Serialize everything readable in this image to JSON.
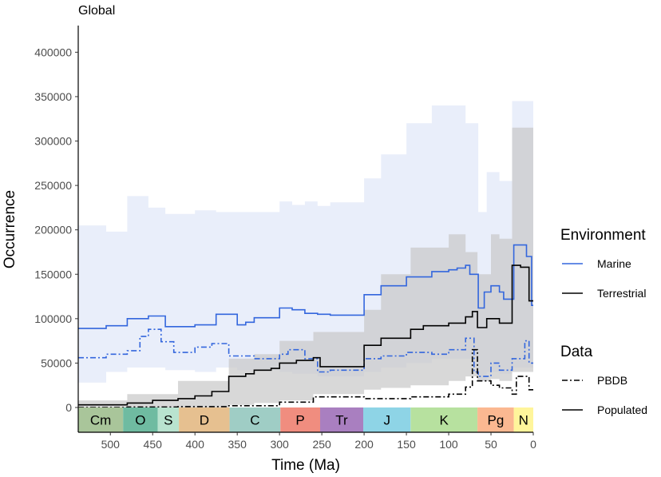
{
  "chart_data": {
    "type": "line",
    "title": "Global",
    "xlabel": "Time (Ma)",
    "ylabel": "Occurrence",
    "xlim": [
      538,
      0
    ],
    "ylim": [
      0,
      430000
    ],
    "x_ticks": [
      500,
      450,
      400,
      350,
      300,
      250,
      200,
      150,
      100,
      50,
      0
    ],
    "y_ticks": [
      0,
      50000,
      100000,
      150000,
      200000,
      250000,
      300000,
      350000,
      400000
    ],
    "y_tick_labels": [
      "0",
      "50000",
      "100000",
      "150000",
      "200000",
      "250000",
      "300000",
      "350000",
      "400000"
    ],
    "periods": [
      {
        "label": "Cm",
        "start": 538,
        "end": 485,
        "color": "#a9c59a"
      },
      {
        "label": "O",
        "start": 485,
        "end": 444,
        "color": "#6fbba1"
      },
      {
        "label": "S",
        "start": 444,
        "end": 419,
        "color": "#b9e3cf"
      },
      {
        "label": "D",
        "start": 419,
        "end": 359,
        "color": "#e6c090"
      },
      {
        "label": "C",
        "start": 359,
        "end": 299,
        "color": "#9fcdc5"
      },
      {
        "label": "P",
        "start": 299,
        "end": 252,
        "color": "#f08d7f"
      },
      {
        "label": "Tr",
        "start": 252,
        "end": 201,
        "color": "#a97fc0"
      },
      {
        "label": "J",
        "start": 201,
        "end": 145,
        "color": "#8ed4e6"
      },
      {
        "label": "K",
        "start": 145,
        "end": 66,
        "color": "#b7e19f"
      },
      {
        "label": "Pg",
        "start": 66,
        "end": 23,
        "color": "#fbb891"
      },
      {
        "label": "N",
        "start": 23,
        "end": 0,
        "color": "#fff59b"
      }
    ],
    "legend": [
      {
        "title": "Environment",
        "items": [
          {
            "label": "Marine",
            "color": "#3366dd",
            "dash": "solid"
          },
          {
            "label": "Terrestrial",
            "color": "#000000",
            "dash": "solid"
          }
        ]
      },
      {
        "title": "Data",
        "items": [
          {
            "label": "PBDB",
            "color": "#000000",
            "dash": "dotdash"
          },
          {
            "label": "Populated",
            "color": "#000000",
            "dash": "solid"
          }
        ]
      }
    ],
    "series": [
      {
        "name": "Marine",
        "kind": "Populated",
        "color": "#3366dd",
        "dash": "solid",
        "x": [
          538,
          505,
          505,
          480,
          480,
          455,
          455,
          435,
          435,
          400,
          400,
          375,
          375,
          350,
          350,
          340,
          340,
          330,
          330,
          300,
          300,
          285,
          285,
          270,
          270,
          255,
          255,
          240,
          240,
          200,
          200,
          180,
          180,
          150,
          150,
          120,
          120,
          100,
          100,
          90,
          90,
          80,
          80,
          75,
          75,
          65,
          65,
          58,
          58,
          50,
          50,
          40,
          40,
          35,
          35,
          23,
          23,
          8,
          8,
          2,
          2,
          0
        ],
        "y": [
          89000,
          89000,
          92000,
          92000,
          100000,
          100000,
          103000,
          103000,
          91000,
          91000,
          93000,
          93000,
          105000,
          105000,
          93000,
          93000,
          96000,
          96000,
          101000,
          101000,
          112000,
          112000,
          110000,
          110000,
          106000,
          106000,
          105000,
          105000,
          104000,
          104000,
          127000,
          127000,
          137000,
          137000,
          147000,
          147000,
          153000,
          153000,
          155000,
          155000,
          157000,
          157000,
          160000,
          160000,
          150000,
          150000,
          112000,
          112000,
          130000,
          130000,
          137000,
          137000,
          130000,
          130000,
          122000,
          122000,
          183000,
          183000,
          170000,
          170000,
          115000,
          115000
        ]
      },
      {
        "name": "Marine",
        "kind": "PBDB",
        "color": "#3366dd",
        "dash": "dotdash",
        "x": [
          538,
          505,
          505,
          480,
          480,
          465,
          465,
          455,
          455,
          440,
          440,
          425,
          425,
          400,
          400,
          380,
          380,
          360,
          360,
          330,
          330,
          300,
          300,
          290,
          290,
          270,
          270,
          255,
          255,
          240,
          240,
          200,
          200,
          180,
          180,
          150,
          150,
          120,
          120,
          100,
          100,
          80,
          80,
          70,
          70,
          65,
          65,
          50,
          50,
          40,
          40,
          25,
          25,
          10,
          10,
          5,
          5,
          0
        ],
        "y": [
          56000,
          56000,
          60000,
          60000,
          64000,
          64000,
          80000,
          80000,
          88000,
          88000,
          74000,
          74000,
          62000,
          62000,
          68000,
          68000,
          72000,
          72000,
          58000,
          58000,
          55000,
          55000,
          60000,
          60000,
          65000,
          65000,
          55000,
          55000,
          40000,
          40000,
          42000,
          42000,
          55000,
          55000,
          58000,
          58000,
          62000,
          62000,
          60000,
          60000,
          65000,
          65000,
          78000,
          78000,
          40000,
          40000,
          35000,
          35000,
          50000,
          50000,
          42000,
          42000,
          55000,
          55000,
          75000,
          75000,
          50000,
          50000
        ]
      },
      {
        "name": "Terrestrial",
        "kind": "Populated",
        "color": "#000000",
        "dash": "solid",
        "x": [
          538,
          480,
          480,
          450,
          450,
          420,
          420,
          400,
          400,
          380,
          380,
          360,
          360,
          340,
          340,
          330,
          330,
          310,
          310,
          300,
          300,
          280,
          280,
          260,
          260,
          252,
          252,
          200,
          200,
          180,
          180,
          145,
          145,
          130,
          130,
          100,
          100,
          80,
          80,
          72,
          72,
          66,
          66,
          55,
          55,
          40,
          40,
          25,
          25,
          15,
          15,
          5,
          5,
          0
        ],
        "y": [
          3000,
          3000,
          5000,
          5000,
          8000,
          8000,
          10000,
          10000,
          13000,
          13000,
          18000,
          18000,
          35000,
          35000,
          38000,
          38000,
          42000,
          42000,
          44000,
          44000,
          50000,
          50000,
          53000,
          53000,
          56000,
          56000,
          46000,
          46000,
          70000,
          70000,
          78000,
          78000,
          88000,
          88000,
          92000,
          92000,
          95000,
          95000,
          102000,
          102000,
          108000,
          108000,
          90000,
          90000,
          100000,
          100000,
          95000,
          95000,
          160000,
          160000,
          158000,
          158000,
          120000,
          120000
        ]
      },
      {
        "name": "Terrestrial",
        "kind": "PBDB",
        "color": "#000000",
        "dash": "dotdash",
        "x": [
          538,
          480,
          480,
          420,
          420,
          360,
          360,
          300,
          300,
          260,
          260,
          200,
          200,
          145,
          145,
          100,
          100,
          80,
          80,
          72,
          72,
          66,
          66,
          50,
          50,
          40,
          40,
          25,
          25,
          20,
          20,
          5,
          5,
          0
        ],
        "y": [
          0,
          0,
          500,
          500,
          1000,
          1000,
          2000,
          2000,
          6000,
          6000,
          12000,
          12000,
          10000,
          10000,
          12000,
          12000,
          15000,
          15000,
          23000,
          23000,
          65000,
          65000,
          30000,
          30000,
          25000,
          25000,
          22000,
          22000,
          15000,
          15000,
          35000,
          35000,
          20000,
          20000
        ]
      }
    ],
    "bands": [
      {
        "name": "Marine",
        "color": "#dbe3f6",
        "x": [
          538,
          505,
          505,
          480,
          480,
          455,
          455,
          435,
          435,
          400,
          400,
          375,
          375,
          350,
          350,
          300,
          300,
          285,
          285,
          270,
          270,
          255,
          255,
          240,
          240,
          200,
          200,
          180,
          180,
          150,
          150,
          120,
          120,
          100,
          100,
          80,
          80,
          65,
          65,
          55,
          55,
          40,
          40,
          25,
          25,
          0
        ],
        "lower": [
          28000,
          28000,
          40000,
          40000,
          45000,
          45000,
          45000,
          45000,
          42000,
          42000,
          40000,
          40000,
          45000,
          45000,
          42000,
          42000,
          40000,
          40000,
          38000,
          38000,
          38000,
          38000,
          35000,
          35000,
          35000,
          35000,
          40000,
          40000,
          45000,
          45000,
          50000,
          50000,
          55000,
          55000,
          55000,
          55000,
          55000,
          55000,
          30000,
          30000,
          40000,
          40000,
          38000,
          38000,
          45000,
          45000
        ],
        "upper": [
          205000,
          205000,
          198000,
          198000,
          238000,
          238000,
          225000,
          225000,
          218000,
          218000,
          222000,
          222000,
          220000,
          220000,
          220000,
          220000,
          232000,
          232000,
          228000,
          228000,
          232000,
          232000,
          227000,
          227000,
          231000,
          231000,
          258000,
          258000,
          285000,
          285000,
          320000,
          320000,
          340000,
          340000,
          340000,
          340000,
          320000,
          320000,
          220000,
          220000,
          265000,
          265000,
          255000,
          255000,
          345000,
          345000
        ]
      },
      {
        "name": "Terrestrial",
        "color": "#c8c8c8",
        "x": [
          538,
          480,
          480,
          420,
          420,
          360,
          360,
          330,
          330,
          300,
          300,
          260,
          260,
          200,
          200,
          180,
          180,
          145,
          145,
          100,
          100,
          80,
          80,
          66,
          66,
          50,
          50,
          40,
          40,
          25,
          25,
          0
        ],
        "lower": [
          0,
          0,
          0,
          0,
          0,
          0,
          3000,
          3000,
          5000,
          5000,
          8000,
          8000,
          15000,
          15000,
          20000,
          20000,
          22000,
          22000,
          25000,
          25000,
          30000,
          30000,
          35000,
          35000,
          30000,
          30000,
          32000,
          32000,
          30000,
          30000,
          40000,
          40000
        ],
        "upper": [
          8000,
          8000,
          15000,
          15000,
          30000,
          30000,
          55000,
          55000,
          60000,
          60000,
          75000,
          75000,
          85000,
          85000,
          110000,
          110000,
          150000,
          150000,
          180000,
          180000,
          195000,
          195000,
          175000,
          175000,
          150000,
          150000,
          195000,
          195000,
          190000,
          190000,
          315000,
          315000
        ]
      }
    ]
  }
}
